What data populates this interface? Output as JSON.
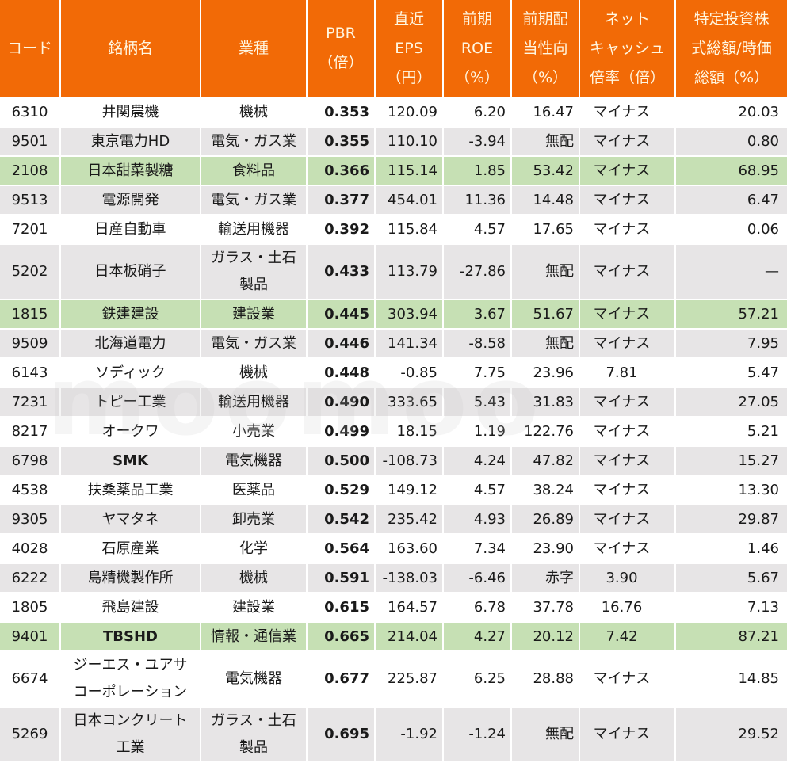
{
  "colors": {
    "header_bg": "#f26a06",
    "header_text": "#fff6e0",
    "row_white": "#ffffff",
    "row_gray": "#e7e5e6",
    "row_green": "#c6e0b4"
  },
  "watermark": "moomoo",
  "headers": [
    {
      "lines": [
        "コード"
      ]
    },
    {
      "lines": [
        "銘柄名"
      ]
    },
    {
      "lines": [
        "業種"
      ]
    },
    {
      "lines": [
        "PBR",
        "（倍）"
      ]
    },
    {
      "lines": [
        "直近",
        "EPS",
        "（円）"
      ]
    },
    {
      "lines": [
        "前期",
        "ROE",
        "（%）"
      ]
    },
    {
      "lines": [
        "前期配",
        "当性向",
        "（%）"
      ]
    },
    {
      "lines": [
        "ネット",
        "キャッシュ",
        "倍率（倍）"
      ]
    },
    {
      "lines": [
        "特定投資株",
        "式総額/時価",
        "総額（%）"
      ]
    }
  ],
  "rows": [
    {
      "style": "white",
      "code": "6310",
      "name": [
        "井関農機"
      ],
      "sector": [
        "機械"
      ],
      "pbr": "0.353",
      "eps": "120.09",
      "roe": "6.20",
      "payout": "16.47",
      "netcash": "マイナス",
      "invest": "20.03"
    },
    {
      "style": "gray",
      "code": "9501",
      "name": [
        "東京電力HD"
      ],
      "sector": [
        "電気・ガス業"
      ],
      "pbr": "0.355",
      "eps": "110.10",
      "roe": "-3.94",
      "payout": "無配",
      "netcash": "マイナス",
      "invest": "0.80"
    },
    {
      "style": "green",
      "code": "2108",
      "name": [
        "日本甜菜製糖"
      ],
      "sector": [
        "食料品"
      ],
      "pbr": "0.366",
      "eps": "115.14",
      "roe": "1.85",
      "payout": "53.42",
      "netcash": "マイナス",
      "invest": "68.95"
    },
    {
      "style": "gray",
      "code": "9513",
      "name": [
        "電源開発"
      ],
      "sector": [
        "電気・ガス業"
      ],
      "pbr": "0.377",
      "eps": "454.01",
      "roe": "11.36",
      "payout": "14.48",
      "netcash": "マイナス",
      "invest": "6.47"
    },
    {
      "style": "white",
      "code": "7201",
      "name": [
        "日産自動車"
      ],
      "sector": [
        "輸送用機器"
      ],
      "pbr": "0.392",
      "eps": "115.84",
      "roe": "4.57",
      "payout": "17.65",
      "netcash": "マイナス",
      "invest": "0.06"
    },
    {
      "style": "gray",
      "code": "5202",
      "name": [
        "日本板硝子"
      ],
      "sector": [
        "ガラス・土石",
        "製品"
      ],
      "pbr": "0.433",
      "eps": "113.79",
      "roe": "-27.86",
      "payout": "無配",
      "netcash": "マイナス",
      "invest": "—"
    },
    {
      "style": "green",
      "code": "1815",
      "name": [
        "鉄建建設"
      ],
      "sector": [
        "建設業"
      ],
      "pbr": "0.445",
      "eps": "303.94",
      "roe": "3.67",
      "payout": "51.67",
      "netcash": "マイナス",
      "invest": "57.21"
    },
    {
      "style": "gray",
      "code": "9509",
      "name": [
        "北海道電力"
      ],
      "sector": [
        "電気・ガス業"
      ],
      "pbr": "0.446",
      "eps": "141.34",
      "roe": "-8.58",
      "payout": "無配",
      "netcash": "マイナス",
      "invest": "7.95"
    },
    {
      "style": "white",
      "code": "6143",
      "name": [
        "ソディック"
      ],
      "sector": [
        "機械"
      ],
      "pbr": "0.448",
      "eps": "-0.85",
      "roe": "7.75",
      "payout": "23.96",
      "netcash": "7.81",
      "invest": "5.47"
    },
    {
      "style": "gray",
      "code": "7231",
      "name": [
        "トピー工業"
      ],
      "sector": [
        "輸送用機器"
      ],
      "pbr": "0.490",
      "eps": "333.65",
      "roe": "5.43",
      "payout": "31.83",
      "netcash": "マイナス",
      "invest": "27.05"
    },
    {
      "style": "white",
      "code": "8217",
      "name": [
        "オークワ"
      ],
      "sector": [
        "小売業"
      ],
      "pbr": "0.499",
      "eps": "18.15",
      "roe": "1.19",
      "payout": "122.76",
      "netcash": "マイナス",
      "invest": "5.21"
    },
    {
      "style": "gray",
      "code": "6798",
      "name": [
        "SMK"
      ],
      "sector": [
        "電気機器"
      ],
      "pbr": "0.500",
      "eps": "-108.73",
      "roe": "4.24",
      "payout": "47.82",
      "netcash": "マイナス",
      "invest": "15.27",
      "bold_name": true
    },
    {
      "style": "white",
      "code": "4538",
      "name": [
        "扶桑薬品工業"
      ],
      "sector": [
        "医薬品"
      ],
      "pbr": "0.529",
      "eps": "149.12",
      "roe": "4.57",
      "payout": "38.24",
      "netcash": "マイナス",
      "invest": "13.30"
    },
    {
      "style": "gray",
      "code": "9305",
      "name": [
        "ヤマタネ"
      ],
      "sector": [
        "卸売業"
      ],
      "pbr": "0.542",
      "eps": "235.42",
      "roe": "4.93",
      "payout": "26.89",
      "netcash": "マイナス",
      "invest": "29.87"
    },
    {
      "style": "white",
      "code": "4028",
      "name": [
        "石原産業"
      ],
      "sector": [
        "化学"
      ],
      "pbr": "0.564",
      "eps": "163.60",
      "roe": "7.34",
      "payout": "23.90",
      "netcash": "マイナス",
      "invest": "1.46"
    },
    {
      "style": "gray",
      "code": "6222",
      "name": [
        "島精機製作所"
      ],
      "sector": [
        "機械"
      ],
      "pbr": "0.591",
      "eps": "-138.03",
      "roe": "-6.46",
      "payout": "赤字",
      "netcash": "3.90",
      "invest": "5.67"
    },
    {
      "style": "white",
      "code": "1805",
      "name": [
        "飛島建設"
      ],
      "sector": [
        "建設業"
      ],
      "pbr": "0.615",
      "eps": "164.57",
      "roe": "6.78",
      "payout": "37.78",
      "netcash": "16.76",
      "invest": "7.13"
    },
    {
      "style": "green",
      "code": "9401",
      "name": [
        "TBSHD"
      ],
      "sector": [
        "情報・通信業"
      ],
      "pbr": "0.665",
      "eps": "214.04",
      "roe": "4.27",
      "payout": "20.12",
      "netcash": "7.42",
      "invest": "87.21",
      "bold_name": true
    },
    {
      "style": "white",
      "code": "6674",
      "name": [
        "ジーエス・ユアサ",
        "コーポレーション"
      ],
      "sector": [
        "電気機器"
      ],
      "pbr": "0.677",
      "eps": "225.87",
      "roe": "6.25",
      "payout": "28.88",
      "netcash": "マイナス",
      "invest": "14.85"
    },
    {
      "style": "gray",
      "code": "5269",
      "name": [
        "日本コンクリート",
        "工業"
      ],
      "sector": [
        "ガラス・土石",
        "製品"
      ],
      "pbr": "0.695",
      "eps": "-1.92",
      "roe": "-1.24",
      "payout": "無配",
      "netcash": "マイナス",
      "invest": "29.52"
    }
  ]
}
